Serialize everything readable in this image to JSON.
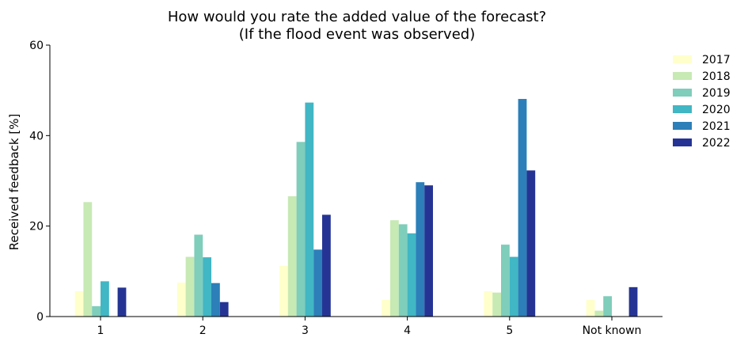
{
  "chart_data": {
    "type": "bar",
    "title": [
      "How would you rate the added value of the forecast?",
      "(If the flood event was observed)"
    ],
    "xlabel": "",
    "ylabel": "Received feedback [%]",
    "ylim": [
      0,
      60
    ],
    "yticks": [
      0,
      20,
      40,
      60
    ],
    "categories": [
      "1",
      "2",
      "3",
      "4",
      "5",
      "Not known"
    ],
    "legend_position": "right",
    "grid": false,
    "series": [
      {
        "name": "2017",
        "color": "#ffffcc",
        "values": [
          5.6,
          7.5,
          11.2,
          3.7,
          5.6,
          3.7
        ]
      },
      {
        "name": "2018",
        "color": "#c7e9b4",
        "values": [
          25.3,
          13.2,
          26.6,
          21.3,
          5.3,
          1.3
        ]
      },
      {
        "name": "2019",
        "color": "#7fcdbb",
        "values": [
          2.3,
          18.1,
          38.6,
          20.4,
          15.9,
          4.5
        ]
      },
      {
        "name": "2020",
        "color": "#41b6c4",
        "values": [
          7.8,
          13.1,
          47.3,
          18.4,
          13.2,
          0
        ]
      },
      {
        "name": "2021",
        "color": "#2c7fb8",
        "values": [
          0,
          7.4,
          14.8,
          29.7,
          48.1,
          0
        ]
      },
      {
        "name": "2022",
        "color": "#253494",
        "values": [
          6.4,
          3.2,
          22.5,
          29.0,
          32.3,
          6.5
        ]
      }
    ]
  }
}
